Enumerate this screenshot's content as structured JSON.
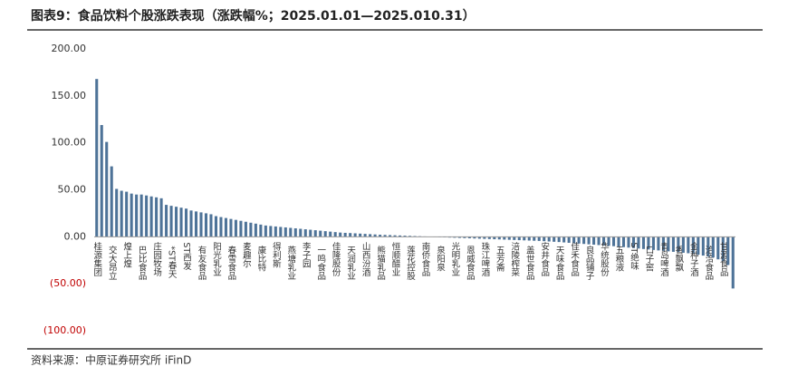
{
  "title": "图表9：食品饮料个股涨跌表现（涨跌幅%；2025.01.01—2025.010.31）",
  "source": "资料来源：中原证券研究所 iFinD",
  "chart_data": {
    "type": "bar",
    "color": "#4e7398",
    "negative_tick_color": "#c00000",
    "ylim": [
      -100,
      200
    ],
    "yticks": [
      {
        "value": -100,
        "label": "(100.00)"
      },
      {
        "value": -50,
        "label": "(50.00)"
      },
      {
        "value": 0,
        "label": "0.00"
      },
      {
        "value": 50,
        "label": "50.00"
      },
      {
        "value": 100,
        "label": "100.00"
      },
      {
        "value": 150,
        "label": "150.00"
      },
      {
        "value": 200,
        "label": "200.00"
      }
    ],
    "categories": [
      "桂源集团",
      null,
      null,
      "交大昂立",
      null,
      null,
      "煌上煌",
      null,
      null,
      "巴比食品",
      null,
      null,
      "庄园牧场",
      null,
      null,
      "*ST春天",
      null,
      null,
      "ST西发",
      null,
      null,
      "有友食品",
      null,
      null,
      "阳光乳业",
      null,
      null,
      "春雪食品",
      null,
      null,
      "麦趣尔",
      null,
      null,
      "康比特",
      null,
      null,
      "得利斯",
      null,
      null,
      "燕塘乳业",
      null,
      null,
      "李子园",
      null,
      null,
      "一鸣食品",
      null,
      null,
      "佳隆股份",
      null,
      null,
      "天润乳业",
      null,
      null,
      "山西汾酒",
      null,
      null,
      "熊猫乳品",
      null,
      null,
      "恒顺醋业",
      null,
      null,
      "莲花控股",
      null,
      null,
      "南侨食品",
      null,
      null,
      "泉阳泉",
      null,
      null,
      "光明乳业",
      null,
      null,
      "恩威食品",
      null,
      null,
      "珠江啤酒",
      null,
      null,
      "五芳斋",
      null,
      null,
      "涪陵榨菜",
      null,
      null,
      "盖世食品",
      null,
      null,
      "安井食品",
      null,
      null,
      "天味食品",
      null,
      null,
      "佳禾食品",
      null,
      null,
      "良品铺子",
      null,
      null,
      "华统股份",
      null,
      null,
      "五粮液",
      null,
      null,
      "ST绝味",
      null,
      null,
      "口子窖",
      null,
      null,
      "青岛啤酒",
      null,
      null,
      "香飘飘",
      null,
      null,
      "金种子酒",
      null,
      null,
      "洽洽食品",
      null,
      null,
      "甘源食品",
      null,
      null
    ],
    "values": [
      168,
      119,
      101,
      75,
      51,
      49,
      48,
      46,
      45,
      45,
      44,
      43,
      42,
      41,
      34,
      33,
      32,
      31,
      30,
      28,
      27,
      26,
      25,
      24,
      22,
      21,
      20,
      19,
      18,
      17,
      16,
      15,
      14,
      13,
      12,
      11.5,
      11,
      10.5,
      10,
      9.5,
      9,
      8.5,
      8,
      7.5,
      7,
      6.5,
      6,
      5.5,
      5,
      4.5,
      4.2,
      4,
      3.7,
      3.4,
      3.1,
      2.8,
      2.5,
      2.2,
      2,
      1.8,
      1.6,
      1.4,
      1.2,
      1,
      0.8,
      0.6,
      0.4,
      0.2,
      -0.2,
      -0.4,
      -0.6,
      -0.8,
      -1,
      -1.2,
      -1.4,
      -1.6,
      -1.8,
      -2,
      -2.2,
      -2.4,
      -2.6,
      -2.8,
      -3,
      -3.2,
      -3.4,
      -3.6,
      -3.8,
      -4,
      -4.2,
      -4.4,
      -4.7,
      -5,
      -5.3,
      -5.6,
      -6,
      -6.4,
      -6.8,
      -7.2,
      -7.6,
      -8,
      -8.4,
      -8.8,
      -9.2,
      -9.6,
      -10,
      -10.5,
      -11,
      -11.5,
      -12,
      -12.5,
      -13,
      -13.5,
      -14,
      -14.5,
      -15,
      -15.5,
      -16,
      -16.5,
      -17,
      -17.5,
      -18,
      -19,
      -20,
      -21,
      -22,
      -24,
      -26,
      -30,
      -55
    ]
  }
}
